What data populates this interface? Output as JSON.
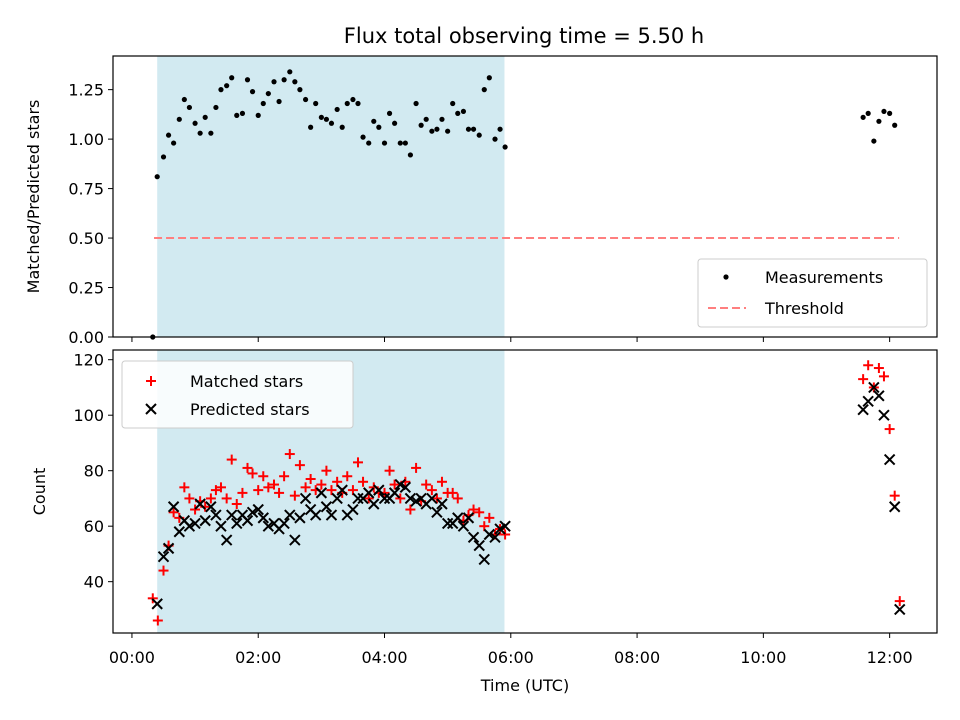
{
  "figure": {
    "title": "Flux total observing time = 5.50 h"
  },
  "chart_data": [
    {
      "type": "scatter",
      "panel": "top",
      "title": "Flux total observing time = 5.50 h",
      "xlabel": "",
      "ylabel": "Matched/Predicted stars",
      "xlim_hours": [
        -0.3,
        12.75
      ],
      "ylim": [
        0,
        1.42
      ],
      "yticks": [
        0.0,
        0.25,
        0.5,
        0.75,
        1.0,
        1.25
      ],
      "ytick_labels": [
        "0.00",
        "0.25",
        "0.50",
        "0.75",
        "1.00",
        "1.25"
      ],
      "shaded_span_hours": [
        0.4,
        5.9
      ],
      "shaded_color": "#add8e6",
      "legend": {
        "placement": "lower right",
        "entries": [
          {
            "label": "Measurements",
            "marker": "dot",
            "color": "#000000"
          },
          {
            "label": "Threshold",
            "marker": "dashed-line",
            "color": "#ff7f7f"
          }
        ]
      },
      "threshold": {
        "value": 0.5,
        "x_range_hours": [
          0.35,
          12.15
        ],
        "color": "#ff7f7f"
      },
      "series": [
        {
          "name": "Measurements",
          "color": "#000000",
          "x": [
            0.33,
            0.4,
            0.5,
            0.58,
            0.66,
            0.75,
            0.83,
            0.91,
            1.0,
            1.08,
            1.16,
            1.25,
            1.33,
            1.41,
            1.5,
            1.58,
            1.66,
            1.75,
            1.83,
            1.91,
            2.0,
            2.08,
            2.16,
            2.25,
            2.33,
            2.41,
            2.5,
            2.58,
            2.66,
            2.75,
            2.83,
            2.91,
            3.0,
            3.08,
            3.16,
            3.25,
            3.33,
            3.41,
            3.5,
            3.58,
            3.66,
            3.75,
            3.83,
            3.91,
            4.0,
            4.08,
            4.16,
            4.25,
            4.33,
            4.41,
            4.5,
            4.58,
            4.66,
            4.75,
            4.83,
            4.91,
            5.0,
            5.08,
            5.16,
            5.25,
            5.33,
            5.41,
            5.5,
            5.58,
            5.66,
            5.75,
            5.83,
            5.91,
            11.58,
            11.66,
            11.75,
            11.83,
            11.91,
            12.0,
            12.08
          ],
          "y": [
            0.0,
            0.81,
            0.91,
            1.02,
            0.98,
            1.1,
            1.2,
            1.16,
            1.08,
            1.03,
            1.11,
            1.03,
            1.16,
            1.25,
            1.27,
            1.31,
            1.12,
            1.13,
            1.3,
            1.24,
            1.12,
            1.18,
            1.23,
            1.29,
            1.19,
            1.3,
            1.34,
            1.29,
            1.25,
            1.2,
            1.06,
            1.18,
            1.11,
            1.1,
            1.08,
            1.15,
            1.06,
            1.18,
            1.2,
            1.18,
            1.01,
            0.98,
            1.09,
            1.06,
            0.98,
            1.13,
            1.08,
            0.98,
            0.98,
            0.92,
            1.18,
            1.07,
            1.1,
            1.04,
            1.05,
            1.1,
            1.04,
            1.18,
            1.13,
            1.14,
            1.05,
            1.05,
            1.02,
            1.25,
            1.31,
            1.0,
            1.05,
            0.96,
            1.11,
            1.13,
            0.99,
            1.09,
            1.14,
            1.13,
            1.07
          ]
        }
      ]
    },
    {
      "type": "scatter",
      "panel": "bottom",
      "xlabel": "Time (UTC)",
      "ylabel": "Count",
      "xlim_hours": [
        -0.3,
        12.75
      ],
      "ylim": [
        21.5,
        123.5
      ],
      "yticks": [
        40,
        60,
        80,
        100,
        120
      ],
      "ytick_labels": [
        "40",
        "60",
        "80",
        "100",
        "120"
      ],
      "xticks_hours": [
        0,
        2,
        4,
        6,
        8,
        10,
        12
      ],
      "xtick_labels": [
        "00:00",
        "02:00",
        "04:00",
        "06:00",
        "08:00",
        "10:00",
        "12:00"
      ],
      "shaded_span_hours": [
        0.4,
        5.9
      ],
      "shaded_color": "#add8e6",
      "legend": {
        "placement": "upper left",
        "entries": [
          {
            "label": "Matched stars",
            "marker": "plus",
            "color": "#ff0000"
          },
          {
            "label": "Predicted stars",
            "marker": "x",
            "color": "#000000"
          }
        ]
      },
      "series": [
        {
          "name": "Matched stars",
          "marker": "plus",
          "color": "#ff0000",
          "x": [
            0.33,
            0.41,
            0.5,
            0.58,
            0.66,
            0.75,
            0.83,
            0.91,
            1.0,
            1.08,
            1.16,
            1.25,
            1.33,
            1.41,
            1.5,
            1.58,
            1.66,
            1.75,
            1.83,
            1.91,
            2.0,
            2.08,
            2.16,
            2.25,
            2.33,
            2.41,
            2.5,
            2.58,
            2.66,
            2.75,
            2.83,
            2.91,
            3.0,
            3.08,
            3.16,
            3.25,
            3.33,
            3.41,
            3.5,
            3.58,
            3.66,
            3.75,
            3.83,
            3.91,
            4.0,
            4.08,
            4.16,
            4.25,
            4.33,
            4.41,
            4.5,
            4.58,
            4.66,
            4.75,
            4.83,
            4.91,
            5.0,
            5.08,
            5.16,
            5.25,
            5.33,
            5.41,
            5.5,
            5.58,
            5.66,
            5.75,
            5.83,
            5.91,
            11.58,
            11.66,
            11.75,
            11.83,
            11.91,
            12.0,
            12.08,
            12.16
          ],
          "y": [
            34,
            26,
            44,
            53,
            65,
            63,
            74,
            70,
            66,
            69,
            67,
            70,
            73,
            74,
            70,
            84,
            68,
            72,
            81,
            79,
            73,
            78,
            74,
            75,
            72,
            78,
            86,
            71,
            82,
            74,
            77,
            73,
            75,
            80,
            73,
            76,
            72,
            78,
            73,
            83,
            76,
            70,
            74,
            72,
            72,
            80,
            75,
            70,
            76,
            66,
            81,
            69,
            75,
            73,
            70,
            76,
            72,
            72,
            70,
            62,
            64,
            66,
            65,
            60,
            63,
            57,
            59,
            57,
            113,
            118,
            110,
            117,
            114,
            95,
            71,
            33
          ]
        },
        {
          "name": "Predicted stars",
          "marker": "x",
          "color": "#000000",
          "x": [
            0.4,
            0.5,
            0.58,
            0.66,
            0.75,
            0.83,
            0.91,
            1.0,
            1.08,
            1.16,
            1.25,
            1.33,
            1.41,
            1.5,
            1.58,
            1.66,
            1.75,
            1.83,
            1.91,
            2.0,
            2.08,
            2.16,
            2.25,
            2.33,
            2.41,
            2.5,
            2.58,
            2.66,
            2.75,
            2.83,
            2.91,
            3.0,
            3.08,
            3.16,
            3.25,
            3.33,
            3.41,
            3.5,
            3.58,
            3.66,
            3.75,
            3.83,
            3.91,
            4.0,
            4.08,
            4.16,
            4.25,
            4.33,
            4.41,
            4.5,
            4.58,
            4.66,
            4.75,
            4.83,
            4.91,
            5.0,
            5.08,
            5.16,
            5.25,
            5.33,
            5.41,
            5.5,
            5.58,
            5.66,
            5.75,
            5.83,
            5.91,
            11.58,
            11.66,
            11.75,
            11.83,
            11.91,
            12.0,
            12.08,
            12.16
          ],
          "y": [
            32,
            49,
            52,
            67,
            58,
            62,
            60,
            61,
            68,
            62,
            67,
            64,
            60,
            55,
            64,
            61,
            64,
            62,
            65,
            66,
            63,
            60,
            61,
            59,
            61,
            64,
            55,
            63,
            70,
            66,
            64,
            72,
            67,
            64,
            70,
            73,
            64,
            66,
            70,
            70,
            72,
            68,
            73,
            70,
            70,
            72,
            75,
            74,
            70,
            69,
            70,
            68,
            70,
            65,
            68,
            61,
            61,
            63,
            60,
            63,
            56,
            53,
            48,
            57,
            56,
            59,
            60,
            102,
            105,
            110,
            107,
            100,
            84,
            67,
            30
          ]
        }
      ]
    }
  ]
}
